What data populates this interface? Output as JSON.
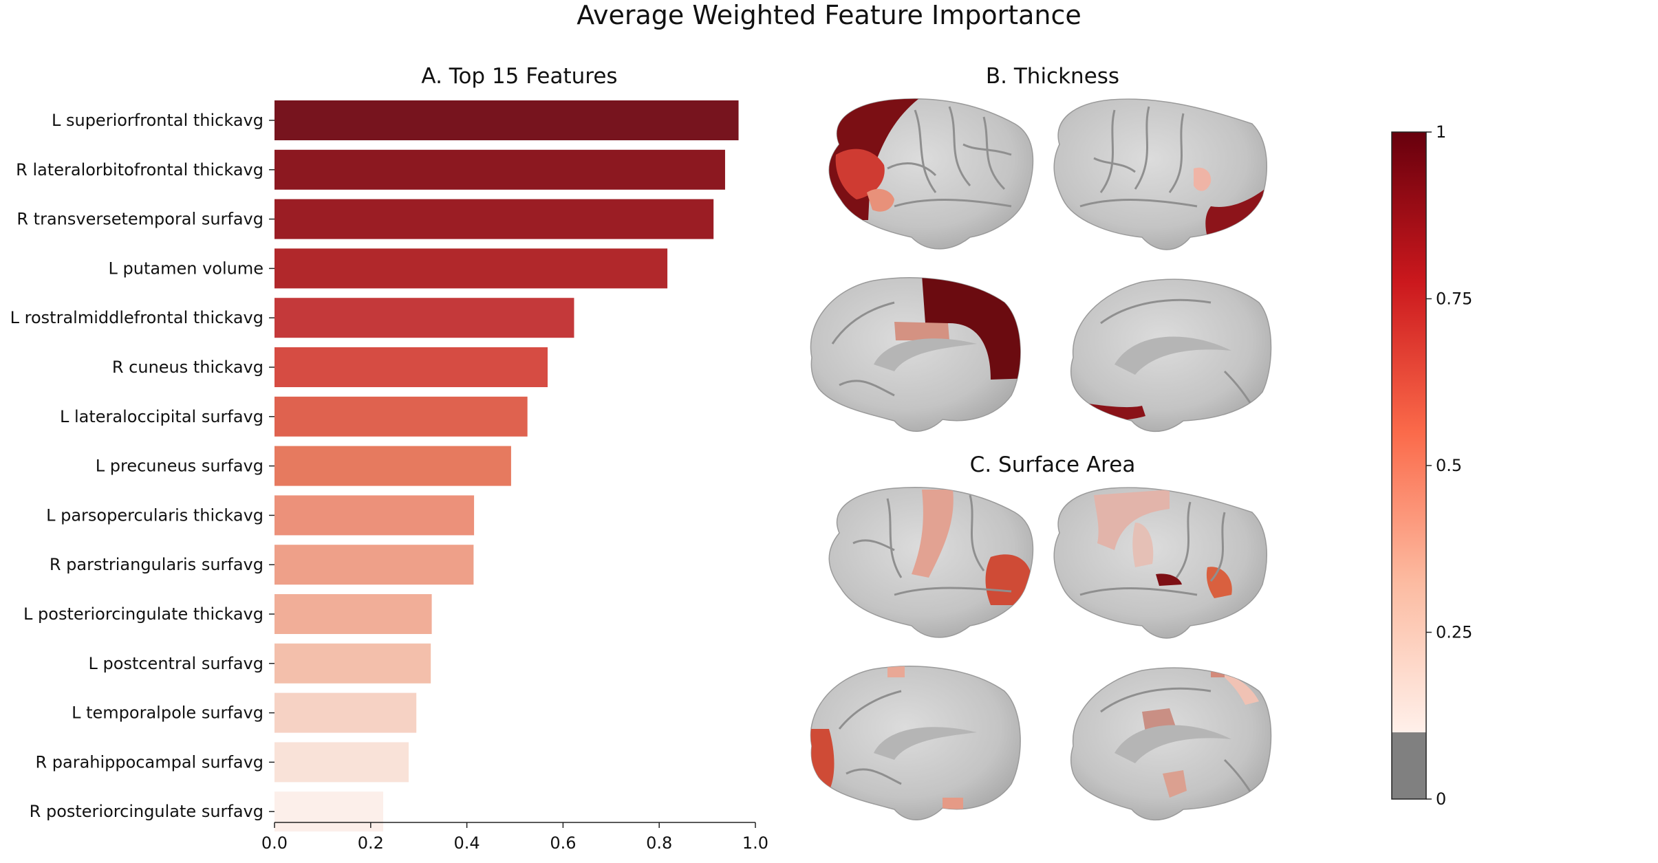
{
  "figure": {
    "title": "Average Weighted Feature Importance",
    "panel_a_title": "A. Top 15 Features",
    "panel_b_title": "B. Thickness",
    "panel_c_title": "C. Surface Area"
  },
  "chart_data": [
    {
      "type": "bar",
      "orientation": "horizontal",
      "title": "A. Top 15 Features",
      "xlabel": "",
      "ylabel": "",
      "xlim": [
        0,
        1.0
      ],
      "xticks": [
        "0.0",
        "0.2",
        "0.4",
        "0.6",
        "0.8",
        "1.0"
      ],
      "grid": false,
      "colormap": "Reds",
      "categories": [
        "L superiorfrontal thickavg",
        "R lateralorbitofrontal thickavg",
        "R transversetemporal surfavg",
        "L putamen volume",
        "L rostralmiddlefrontal thickavg",
        "R cuneus thickavg",
        "L lateraloccipital surfavg",
        "L precuneus surfavg",
        "L parsopercularis thickavg",
        "R parstriangularis surfavg",
        "L posteriorcingulate thickavg",
        "L postcentral surfavg",
        "L temporalpole surfavg",
        "R parahippocampal surfavg",
        "R posteriorcingulate surfavg"
      ],
      "values": [
        0.965,
        0.937,
        0.913,
        0.817,
        0.623,
        0.568,
        0.526,
        0.492,
        0.415,
        0.414,
        0.327,
        0.325,
        0.295,
        0.279,
        0.226
      ],
      "colors": [
        "#77141e",
        "#8c1820",
        "#9b1d24",
        "#b1282b",
        "#c4393a",
        "#d64c43",
        "#df624f",
        "#e67a5f",
        "#ec917a",
        "#eea089",
        "#f1ae98",
        "#f3bfab",
        "#f6d2c4",
        "#f9e2d8",
        "#fcefea"
      ]
    },
    {
      "type": "heatmap",
      "title": "colorbar",
      "range": [
        0,
        1
      ],
      "ticks": [
        "1",
        "0.75",
        "0.5",
        "0.25",
        "0"
      ],
      "masked_below": 0.1,
      "masked_color": "#808080",
      "colormap_stops": [
        "#fff0ea",
        "#fcbba1",
        "#fb6a4a",
        "#cb181d",
        "#67000d"
      ]
    }
  ],
  "brains": {
    "thickness": [
      {
        "view": "lateral-left",
        "regions": [
          {
            "name": "superiorfrontal",
            "color": "#7b0f14"
          },
          {
            "name": "rostralmiddlefrontal",
            "color": "#cf3b32"
          },
          {
            "name": "parsopercularis",
            "color": "#e8917a"
          }
        ]
      },
      {
        "view": "lateral-right",
        "regions": [
          {
            "name": "lateralorbitofrontal",
            "color": "#8d141a"
          },
          {
            "name": "cuneus",
            "color": "#efb4a6"
          }
        ]
      },
      {
        "view": "medial-left",
        "regions": [
          {
            "name": "superiorfrontal",
            "color": "#6b0b10"
          },
          {
            "name": "posteriorcingulate",
            "color": "#d49282"
          }
        ]
      },
      {
        "view": "medial-right",
        "regions": [
          {
            "name": "lateralorbitofrontal",
            "color": "#8a1218"
          }
        ]
      }
    ],
    "surface": [
      {
        "view": "lateral-left",
        "regions": [
          {
            "name": "postcentral",
            "color": "#e2a292"
          },
          {
            "name": "lateraloccipital",
            "color": "#cf4b36"
          },
          {
            "name": "temporalpole",
            "color": "#f1c2b2"
          }
        ]
      },
      {
        "view": "lateral-right",
        "regions": [
          {
            "name": "postcentral",
            "color": "#e2b4aa"
          },
          {
            "name": "parstriangularis",
            "color": "#d9603f"
          },
          {
            "name": "transversetemporal",
            "color": "#7d0f14"
          }
        ]
      },
      {
        "view": "medial-left",
        "regions": [
          {
            "name": "precuneus",
            "color": "#cf4b36"
          },
          {
            "name": "parahippocampal",
            "color": "#e59a86"
          }
        ]
      },
      {
        "view": "medial-right",
        "regions": [
          {
            "name": "posteriorcingulate",
            "color": "#c98f84"
          },
          {
            "name": "parahippocampal",
            "color": "#dba090"
          }
        ]
      }
    ]
  }
}
